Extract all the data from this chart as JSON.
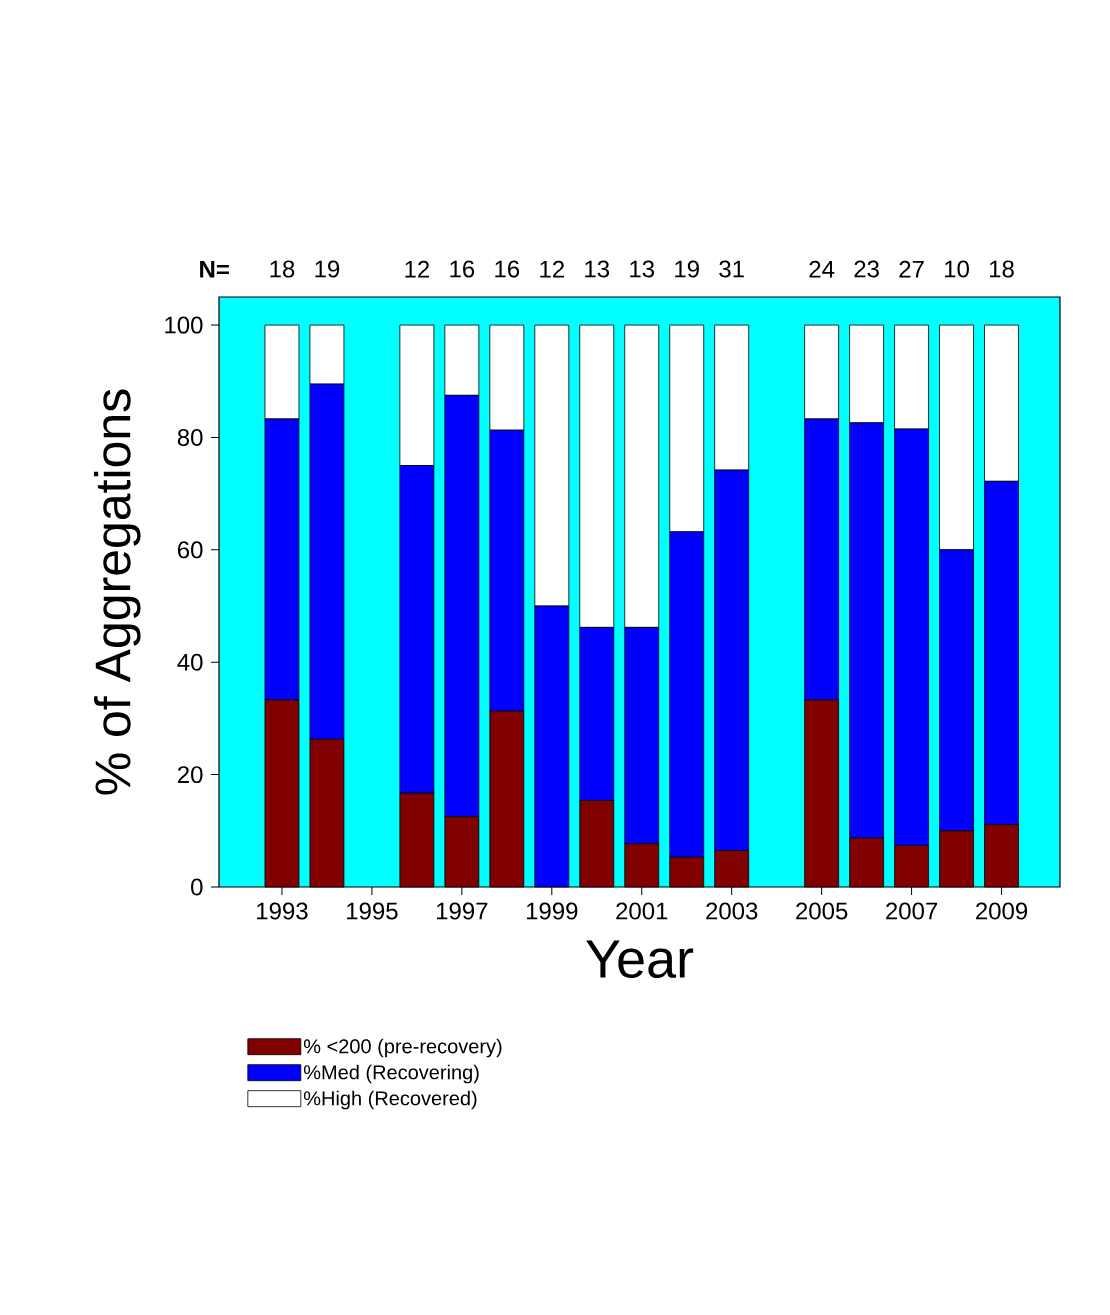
{
  "chart_data": {
    "type": "bar",
    "stacked": true,
    "xlabel": "Year",
    "ylabel": "% of Aggregations",
    "x": [
      1993,
      1994,
      1996,
      1997,
      1998,
      1999,
      2000,
      2001,
      2002,
      2003,
      2005,
      2006,
      2007,
      2008,
      2009
    ],
    "series": [
      {
        "name": "% <200 (pre-recovery)",
        "color": "#800000",
        "values": [
          33.3,
          26.3,
          16.7,
          12.5,
          31.3,
          0,
          15.4,
          7.7,
          5.3,
          6.5,
          33.3,
          8.7,
          7.4,
          10,
          11.1
        ]
      },
      {
        "name": "%Med (Recovering)",
        "color": "#0000ff",
        "values": [
          50,
          63.2,
          58.3,
          75,
          50,
          50,
          30.8,
          38.5,
          57.9,
          67.7,
          50,
          73.9,
          74.1,
          50,
          61.1
        ]
      },
      {
        "name": "%High (Recovered)",
        "color": "#ffffff",
        "values": [
          16.7,
          10.5,
          25,
          12.5,
          18.7,
          50,
          53.8,
          53.8,
          36.8,
          25.8,
          16.7,
          17.4,
          18.5,
          40,
          27.8
        ]
      }
    ],
    "xlim": [
      1991.6,
      2010.3
    ],
    "ylim": [
      0,
      105
    ],
    "xticks": [
      1993,
      1995,
      1997,
      1999,
      2001,
      2003,
      2005,
      2007,
      2009
    ],
    "yticks": [
      0,
      20,
      40,
      60,
      80,
      100
    ],
    "legend": "bottom left",
    "annotations": [
      "N=",
      "18",
      "19",
      "12",
      "16",
      "16",
      "12",
      "13",
      "13",
      "19",
      "31",
      "24",
      "23",
      "27",
      "10",
      "18"
    ]
  }
}
